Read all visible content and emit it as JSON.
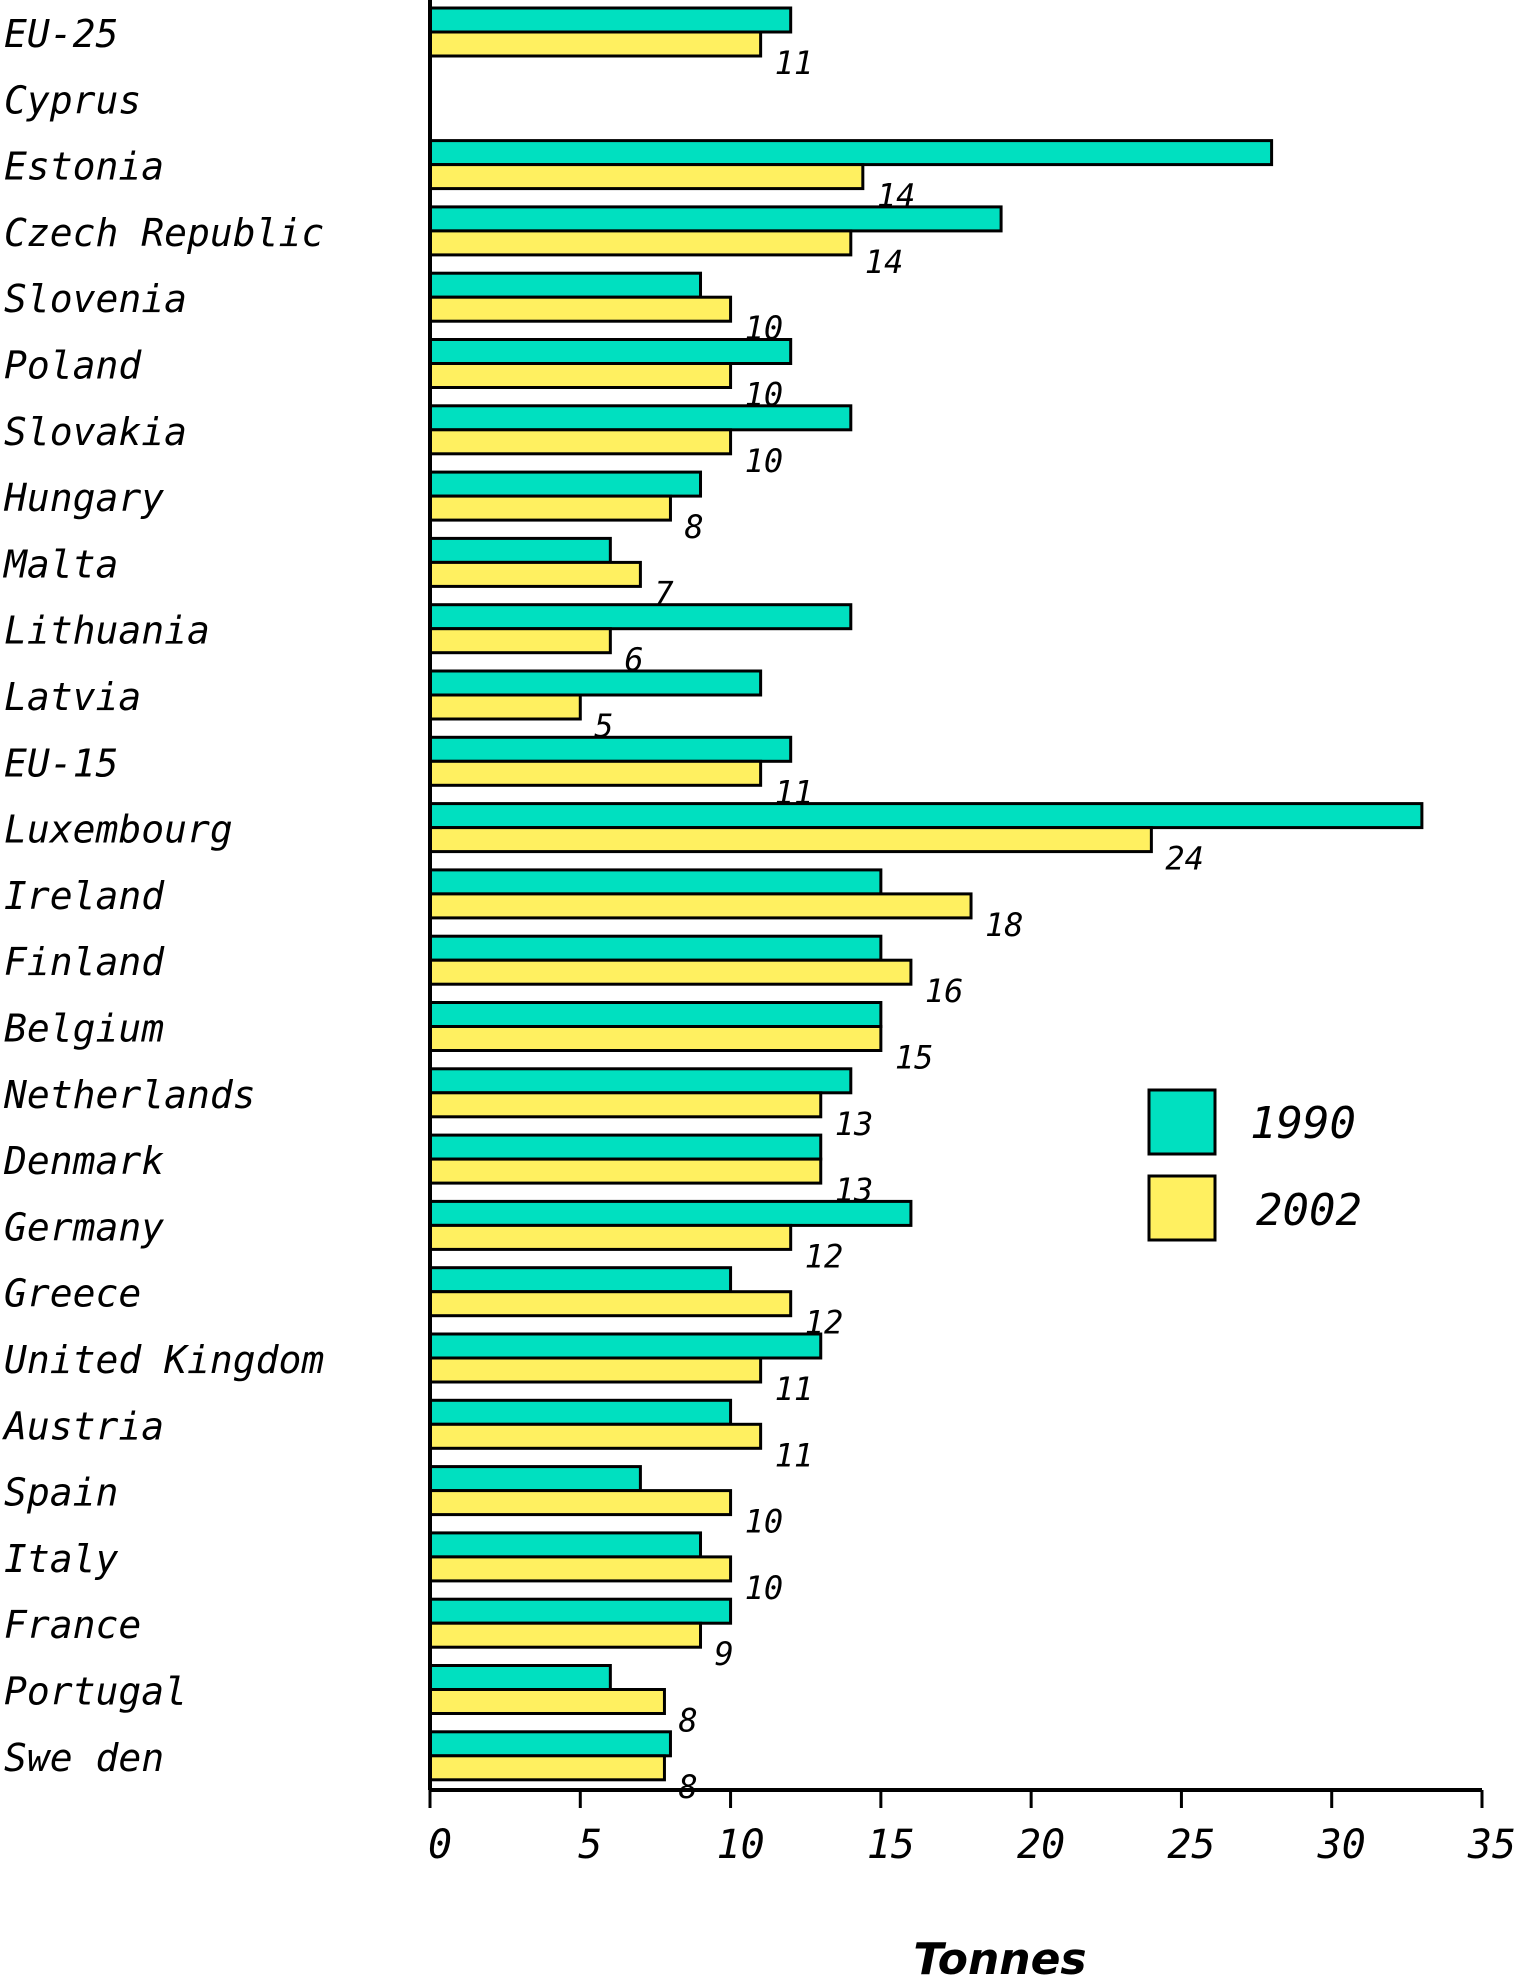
{
  "chart_data": {
    "type": "bar",
    "orientation": "horizontal",
    "categories": [
      "EU-25",
      "Cyprus",
      "Estonia",
      "Czech Republic",
      "Slovenia",
      "Poland",
      "Slovakia",
      "Hungary",
      "Malta",
      "Lithuania",
      "Latvia",
      "EU-15",
      "Luxembourg",
      "Ireland",
      "Finland",
      "Belgium",
      "Netherlands",
      "Denmark",
      "Germany",
      "Greece",
      "United Kingdom",
      "Austria",
      "Spain",
      "Italy",
      "France",
      "Portugal",
      "Swe den"
    ],
    "series": [
      {
        "name": "1990",
        "color": "#00E0C0",
        "values": [
          12,
          0.8,
          28,
          19,
          9,
          12,
          14,
          9,
          6,
          14,
          11,
          12,
          33,
          15,
          15,
          15,
          14,
          13,
          16,
          10,
          13,
          10,
          7,
          9,
          10,
          6,
          8
        ]
      },
      {
        "name": "2002",
        "color": "#FFF060",
        "values": [
          11,
          null,
          14.4,
          14,
          10,
          10,
          10,
          8,
          7,
          6,
          5,
          11,
          24,
          18,
          16,
          15,
          13,
          13,
          12,
          12,
          11,
          11,
          10,
          10,
          9,
          7.8,
          7.8
        ]
      }
    ],
    "data_labels": [
      "11",
      "",
      "14",
      "14",
      "10",
      "10",
      "10",
      "8",
      "7",
      "6",
      "5",
      "11",
      "24",
      "18",
      "16",
      "15",
      "13",
      "13",
      "12",
      "12",
      "11",
      "11",
      "10",
      "10",
      "9",
      "8",
      "8"
    ],
    "xlim": [
      0,
      35
    ],
    "xticks": [
      "0",
      "5",
      "10",
      "15",
      "20",
      "25",
      "30",
      "35"
    ],
    "xlabel": "Tonnes",
    "legend": {
      "placement": "right",
      "labels": [
        "1990",
        "2002"
      ]
    },
    "grid": false
  }
}
